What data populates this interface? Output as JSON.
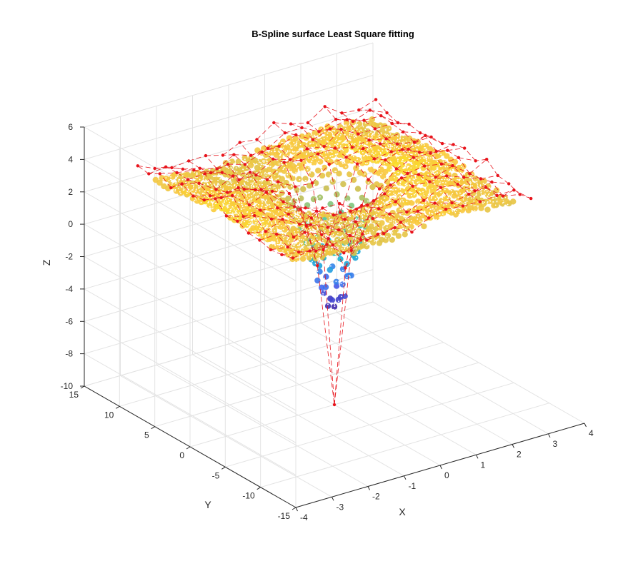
{
  "chart_data": {
    "type": "surface3d",
    "title": "B-Spline surface Least Square fitting",
    "xlabel": "X",
    "ylabel": "Y",
    "zlabel": "Z",
    "xlim": [
      -4,
      4
    ],
    "ylim": [
      -15,
      15
    ],
    "zlim": [
      -10,
      6
    ],
    "x_ticks": [
      -4,
      -3,
      -2,
      -1,
      0,
      1,
      2,
      3,
      4
    ],
    "y_ticks": [
      -15,
      -10,
      -5,
      0,
      5,
      10,
      15
    ],
    "z_ticks": [
      -10,
      -8,
      -6,
      -4,
      -2,
      0,
      2,
      4,
      6
    ],
    "x_tick_labels": [
      "-4",
      "-3",
      "-2",
      "-1",
      "0",
      "1",
      "2",
      "3",
      "4"
    ],
    "y_tick_labels": [
      "-15",
      "-10",
      "-5",
      "0",
      "5",
      "10",
      "15"
    ],
    "z_tick_labels": [
      "-10",
      "-8",
      "-6",
      "-4",
      "-2",
      "0",
      "2",
      "4",
      "6"
    ],
    "surface": {
      "description_function": "z = 3.5 - 7.5*exp(-(x^2 + (y/3.2)^2)/0.6) + noise",
      "x_range": [
        -3,
        3
      ],
      "y_range": [
        -10,
        10
      ],
      "z_min": -4,
      "z_max": 4.5,
      "colormap": "parula",
      "points_color": "#ffffff"
    },
    "control_polygon": {
      "color": "#e8141c",
      "line_style": "dashed",
      "lowest_control_point_z": -10
    },
    "grid": true,
    "colors": {
      "control_points": "#e8141c",
      "grid": "#e3e3e3",
      "axes": "#262626"
    }
  }
}
